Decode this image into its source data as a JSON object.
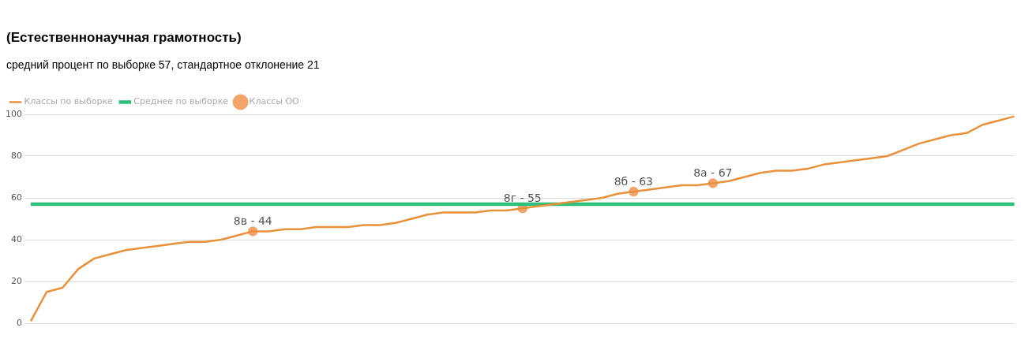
{
  "chart_data": {
    "type": "line",
    "title": "(Естественнонаучная грамотность)",
    "subtitle": "средний процент по выборке 57, стандартное отклонение 21",
    "categories": [
      null,
      null,
      null,
      null,
      null,
      null,
      null,
      null,
      null,
      null,
      null,
      null,
      null,
      null,
      null,
      null,
      null,
      null,
      null,
      null,
      null,
      null,
      null,
      null,
      null,
      null,
      null,
      null,
      null,
      null,
      null,
      null,
      null,
      null,
      null,
      null,
      null,
      null,
      null,
      null,
      null,
      null,
      null,
      null,
      null,
      null,
      null,
      null,
      null,
      null,
      null,
      null,
      null,
      null,
      null,
      null,
      null,
      null,
      null,
      null,
      null,
      null,
      null
    ],
    "series": [
      {
        "name": "Классы по выборке",
        "type": "line",
        "marker": "none",
        "color": "#e8913a",
        "values": [
          1,
          15,
          17,
          26,
          31,
          33,
          35,
          36,
          37,
          38,
          39,
          39,
          40,
          42,
          44,
          44,
          45,
          45,
          46,
          46,
          46,
          47,
          47,
          48,
          50,
          52,
          53,
          53,
          53,
          54,
          54,
          55,
          56,
          57,
          58,
          59,
          60,
          62,
          63,
          64,
          65,
          66,
          66,
          67,
          68,
          70,
          72,
          73,
          73,
          74,
          76,
          77,
          78,
          79,
          80,
          83,
          86,
          88,
          90,
          91,
          95,
          97,
          99
        ]
      },
      {
        "name": "Среднее по выборке",
        "type": "line",
        "marker": "none",
        "color": "#2ebf7a",
        "values": [
          57,
          57,
          57,
          57,
          57,
          57,
          57,
          57,
          57,
          57,
          57,
          57,
          57,
          57,
          57,
          57,
          57,
          57,
          57,
          57,
          57,
          57,
          57,
          57,
          57,
          57,
          57,
          57,
          57,
          57,
          57,
          57,
          57,
          57,
          57,
          57,
          57,
          57,
          57,
          57,
          57,
          57,
          57,
          57,
          57,
          57,
          57,
          57,
          57,
          57,
          57,
          57,
          57,
          57,
          57,
          57,
          57,
          57,
          57,
          57,
          57,
          57,
          57
        ]
      },
      {
        "name": "Классы ОО",
        "type": "scatter",
        "marker": "circle",
        "color": "#f2a46a",
        "values": [
          null,
          null,
          null,
          null,
          null,
          null,
          null,
          null,
          null,
          null,
          null,
          null,
          null,
          null,
          44,
          null,
          null,
          null,
          null,
          null,
          null,
          null,
          null,
          null,
          null,
          null,
          null,
          null,
          null,
          null,
          null,
          55,
          null,
          null,
          null,
          null,
          null,
          null,
          63,
          null,
          null,
          null,
          null,
          67,
          null,
          null,
          null,
          null,
          null,
          null,
          null,
          null,
          null,
          null,
          null,
          null,
          null,
          null,
          null,
          null,
          null,
          null,
          null
        ],
        "value_labels": [
          null,
          null,
          null,
          null,
          null,
          null,
          null,
          null,
          null,
          null,
          null,
          null,
          null,
          null,
          "8в - 44",
          null,
          null,
          null,
          null,
          null,
          null,
          null,
          null,
          null,
          null,
          null,
          null,
          null,
          null,
          null,
          null,
          "8г - 55",
          null,
          null,
          null,
          null,
          null,
          null,
          "8б - 63",
          null,
          null,
          null,
          null,
          "8а - 67",
          null,
          null,
          null,
          null,
          null,
          null,
          null,
          null,
          null,
          null,
          null,
          null,
          null,
          null,
          null,
          null,
          null,
          null,
          null
        ]
      }
    ],
    "ylim": [
      0,
      100
    ],
    "yticks": [
      0,
      20,
      40,
      60,
      80,
      100
    ],
    "grid": "y",
    "legend": "top left",
    "tick_labels": "y"
  }
}
